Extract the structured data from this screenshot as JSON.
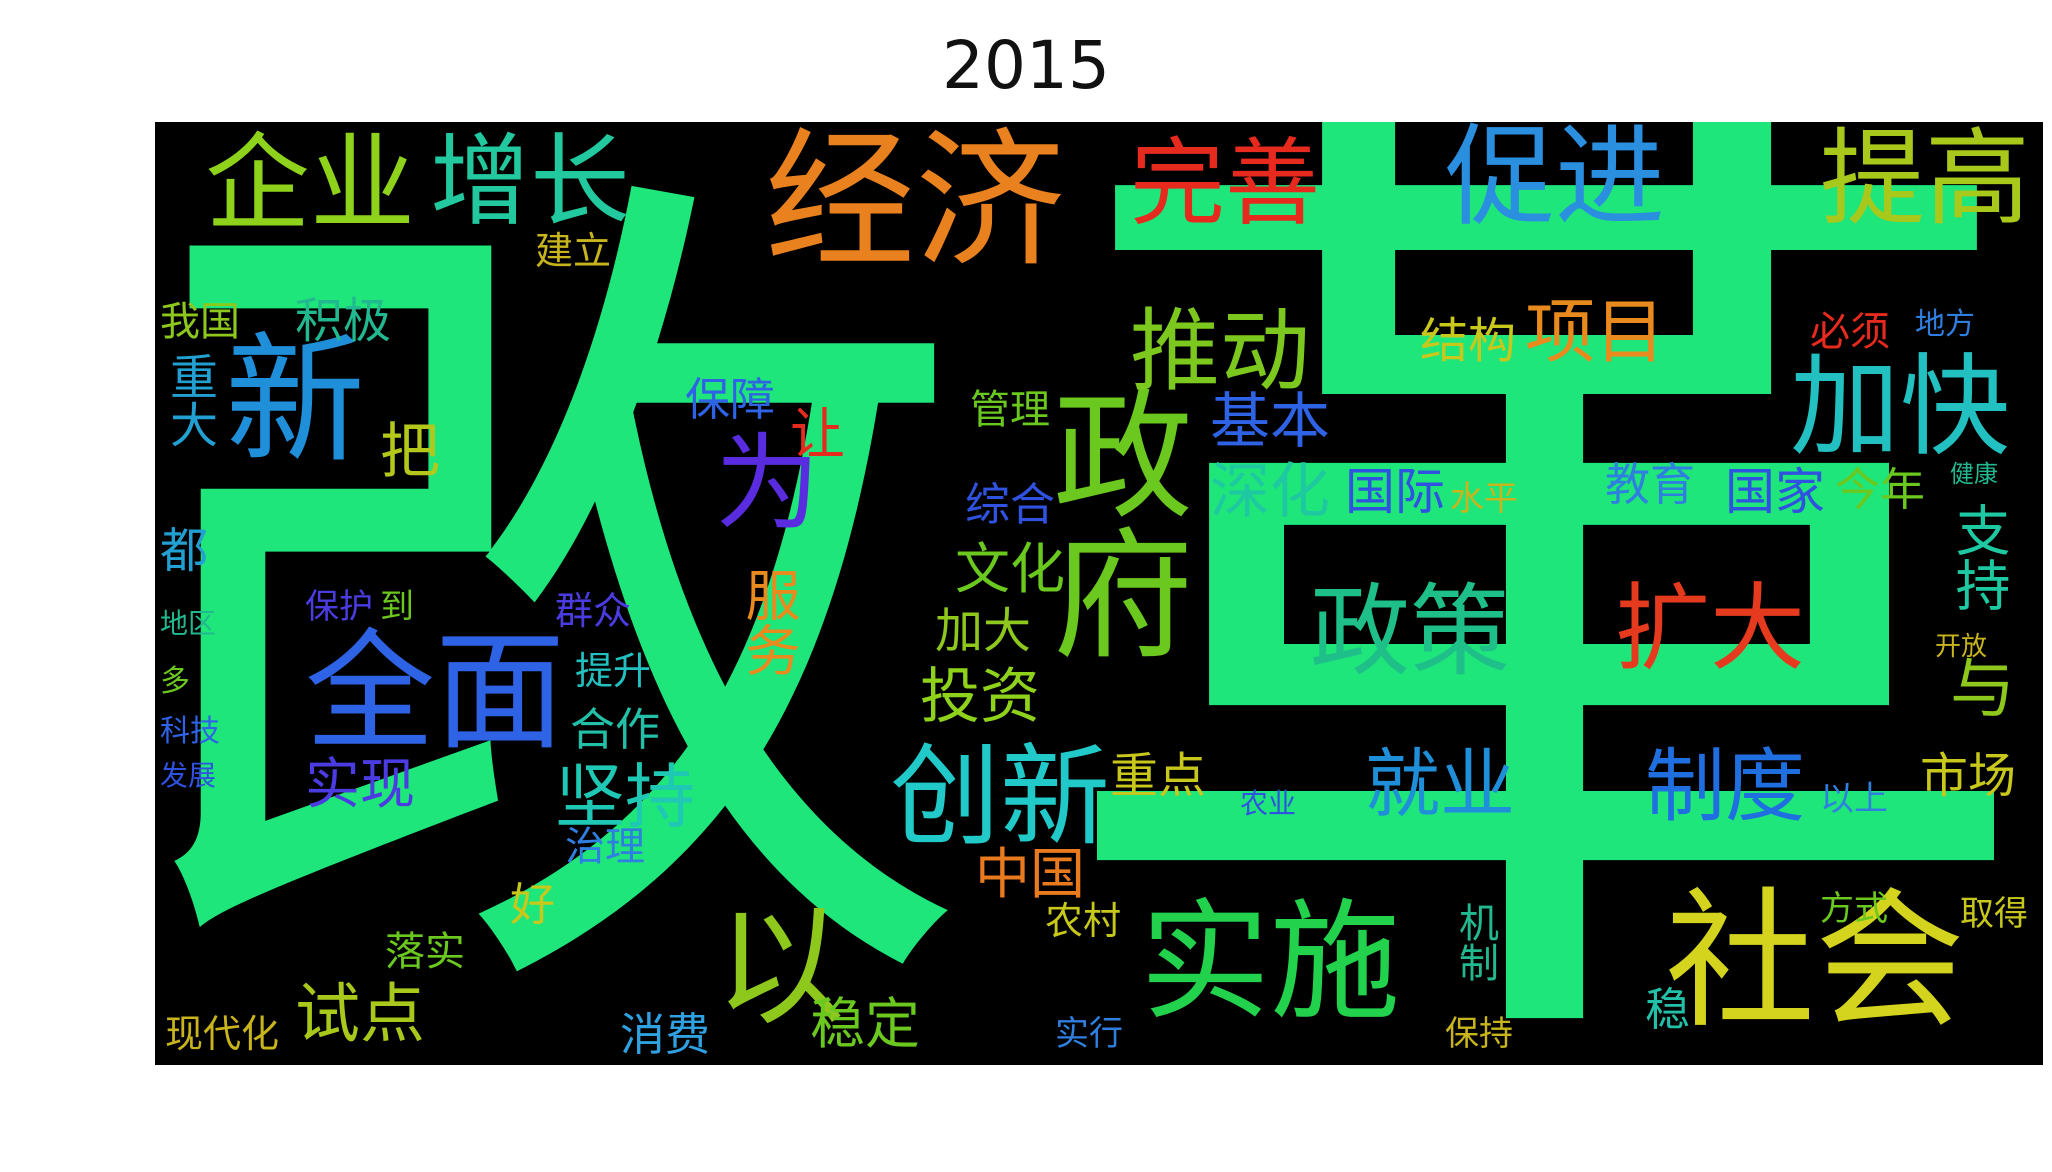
{
  "title": "2015",
  "word_cloud": {
    "background": "#000000",
    "words": [
      {
        "text": "改",
        "color": "#1ee67a"
      },
      {
        "text": "革",
        "color": "#1ee67a"
      },
      {
        "text": "经济",
        "color": "#e9821e"
      },
      {
        "text": "企业",
        "color": "#8ed21c"
      },
      {
        "text": "增长",
        "color": "#22c99e"
      },
      {
        "text": "完善",
        "color": "#e62a1e"
      },
      {
        "text": "促进",
        "color": "#2b8fe0"
      },
      {
        "text": "提高",
        "color": "#a8c81c"
      },
      {
        "text": "新",
        "color": "#1f8fd9"
      },
      {
        "text": "政府",
        "color": "#6ac81e"
      },
      {
        "text": "推动",
        "color": "#7cc81e"
      },
      {
        "text": "加快",
        "color": "#22c0c0"
      },
      {
        "text": "全面",
        "color": "#2f63e6"
      },
      {
        "text": "为",
        "color": "#5a2ce0"
      },
      {
        "text": "政策",
        "color": "#1fbf8a"
      },
      {
        "text": "扩大",
        "color": "#e63a1e"
      },
      {
        "text": "创新",
        "color": "#22c9c9"
      },
      {
        "text": "实施",
        "color": "#22d24c"
      },
      {
        "text": "社会",
        "color": "#d4d41e"
      },
      {
        "text": "坚持",
        "color": "#1ec8b4"
      },
      {
        "text": "以",
        "color": "#8ec81c"
      },
      {
        "text": "就业",
        "color": "#1f8fd9"
      },
      {
        "text": "制度",
        "color": "#1f6fe0"
      },
      {
        "text": "项目",
        "color": "#e98a1e"
      },
      {
        "text": "基本",
        "color": "#2f63e6"
      },
      {
        "text": "深化",
        "color": "#1ec8a0"
      },
      {
        "text": "国际",
        "color": "#2f52e0"
      },
      {
        "text": "投资",
        "color": "#8ed21c"
      },
      {
        "text": "服务",
        "color": "#e98a1e"
      },
      {
        "text": "实现",
        "color": "#4a3ce0"
      },
      {
        "text": "试点",
        "color": "#a8c81c"
      },
      {
        "text": "中国",
        "color": "#e97a1e"
      },
      {
        "text": "支持",
        "color": "#1ec8a0"
      },
      {
        "text": "与",
        "color": "#8ec81c"
      },
      {
        "text": "市场",
        "color": "#c8c81c"
      },
      {
        "text": "稳定",
        "color": "#6ac81e"
      },
      {
        "text": "积极",
        "color": "#22b890"
      },
      {
        "text": "重大",
        "color": "#22a0d2"
      },
      {
        "text": "保障",
        "color": "#2f63e6"
      },
      {
        "text": "让",
        "color": "#e62a1e"
      },
      {
        "text": "把",
        "color": "#b4c81c"
      },
      {
        "text": "结构",
        "color": "#c8c81c"
      },
      {
        "text": "必须",
        "color": "#e62a1e"
      },
      {
        "text": "国家",
        "color": "#2f52e0"
      },
      {
        "text": "今年",
        "color": "#6ac81e"
      },
      {
        "text": "教育",
        "color": "#2f7fe0"
      },
      {
        "text": "文化",
        "color": "#6ac81e"
      },
      {
        "text": "加大",
        "color": "#8ec81c"
      },
      {
        "text": "合作",
        "color": "#22c0a8"
      },
      {
        "text": "消费",
        "color": "#2fa0e0"
      },
      {
        "text": "落实",
        "color": "#6ac81e"
      },
      {
        "text": "现代化",
        "color": "#c8b41c"
      },
      {
        "text": "机制",
        "color": "#22b890"
      },
      {
        "text": "方式",
        "color": "#6ac81e"
      },
      {
        "text": "取得",
        "color": "#c8c81c"
      },
      {
        "text": "以上",
        "color": "#2f7fe0"
      },
      {
        "text": "重点",
        "color": "#c8c81c"
      },
      {
        "text": "管理",
        "color": "#6ac81e"
      },
      {
        "text": "综合",
        "color": "#2f52e0"
      },
      {
        "text": "建立",
        "color": "#c8b41c"
      },
      {
        "text": "我国",
        "color": "#8ec81c"
      },
      {
        "text": "水平",
        "color": "#c8b41c"
      },
      {
        "text": "农村",
        "color": "#c8c81c"
      },
      {
        "text": "群众",
        "color": "#4a3ce0"
      },
      {
        "text": "提升",
        "color": "#22c0c0"
      },
      {
        "text": "好",
        "color": "#c8c81c"
      },
      {
        "text": "都",
        "color": "#22a0d2"
      },
      {
        "text": "保护",
        "color": "#4a3ce0"
      },
      {
        "text": "到",
        "color": "#6ac81e"
      },
      {
        "text": "治理",
        "color": "#2f7fe0"
      },
      {
        "text": "实行",
        "color": "#2f7fe0"
      },
      {
        "text": "保持",
        "color": "#c8b41c"
      },
      {
        "text": "稳",
        "color": "#22c0a8"
      },
      {
        "text": "开放",
        "color": "#c8b41c"
      },
      {
        "text": "地区",
        "color": "#22b890"
      },
      {
        "text": "科技",
        "color": "#2f63e6"
      },
      {
        "text": "发展",
        "color": "#2f52e0"
      },
      {
        "text": "多",
        "color": "#6ac81e"
      },
      {
        "text": "农业",
        "color": "#2f52e0"
      },
      {
        "text": "地方",
        "color": "#2f7fe0"
      },
      {
        "text": "健康",
        "color": "#22b890"
      }
    ]
  }
}
